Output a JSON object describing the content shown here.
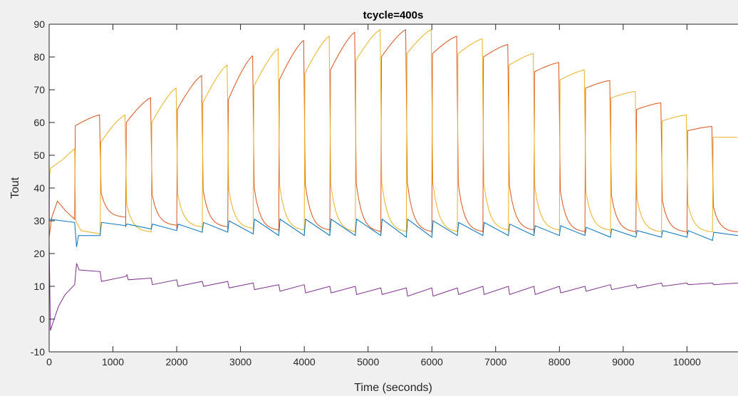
{
  "chart_data": {
    "type": "line",
    "title": "tcycle=400s",
    "xlabel": "Time (seconds)",
    "ylabel": "Tout",
    "xlim": [
      0,
      10800
    ],
    "ylim": [
      -10,
      90
    ],
    "xticks": [
      0,
      1000,
      2000,
      3000,
      4000,
      5000,
      6000,
      7000,
      8000,
      9000,
      10000
    ],
    "yticks": [
      -10,
      0,
      10,
      20,
      30,
      40,
      50,
      60,
      70,
      80,
      90
    ],
    "grid": false,
    "cycle_period": 400,
    "series": [
      {
        "color": "#d95319",
        "description": "square-wave bed temperature (rises during odd half-cycles)",
        "start": [
          0,
          25.0
        ],
        "first_peak": [
          130,
          36.0
        ],
        "cycles": [
          {
            "t": 400,
            "low": 30.5,
            "high": 59.0,
            "peak": 62.3,
            "high_until": 800
          },
          {
            "t": 1200,
            "low": 28.0,
            "high": 60.0,
            "peak": 67.5,
            "high_until": 1600
          },
          {
            "t": 2000,
            "low": 27.5,
            "high": 64.0,
            "peak": 74.3,
            "high_until": 2400
          },
          {
            "t": 2800,
            "low": 26.5,
            "high": 67.0,
            "peak": 80.3,
            "high_until": 3200
          },
          {
            "t": 3600,
            "low": 26.5,
            "high": 73.0,
            "peak": 85.0,
            "high_until": 4000
          },
          {
            "t": 4400,
            "low": 26.0,
            "high": 76.0,
            "peak": 87.5,
            "high_until": 4800
          },
          {
            "t": 5200,
            "low": 26.0,
            "high": 80.0,
            "peak": 88.3,
            "high_until": 5600
          },
          {
            "t": 6000,
            "low": 26.0,
            "high": 81.0,
            "peak": 86.3,
            "high_until": 6400
          },
          {
            "t": 6800,
            "low": 26.5,
            "high": 80.0,
            "peak": 83.8,
            "high_until": 7200
          },
          {
            "t": 7600,
            "low": 26.0,
            "high": 75.5,
            "peak": 78.3,
            "high_until": 8000
          },
          {
            "t": 8400,
            "low": 26.0,
            "high": 70.5,
            "peak": 72.8,
            "high_until": 8800
          },
          {
            "t": 9200,
            "low": 26.0,
            "high": 64.0,
            "peak": 66.0,
            "high_until": 9600
          },
          {
            "t": 10000,
            "low": 26.0,
            "high": 57.5,
            "peak": 58.8,
            "high_until": 10400
          }
        ],
        "end": [
          10800,
          27.0
        ]
      },
      {
        "color": "#edb120",
        "description": "square-wave bed temperature (rises during even half-cycles)",
        "start": [
          0,
          44.0
        ],
        "first_high_until": 400,
        "first_peak": [
          400,
          52.0
        ],
        "cycles": [
          {
            "t": 800,
            "low": 26.0,
            "high": 54.0,
            "peak": 62.3,
            "high_until": 1200
          },
          {
            "t": 1600,
            "low": 27.5,
            "high": 60.0,
            "peak": 70.5,
            "high_until": 2000
          },
          {
            "t": 2400,
            "low": 27.0,
            "high": 66.0,
            "peak": 77.5,
            "high_until": 2800
          },
          {
            "t": 3200,
            "low": 26.5,
            "high": 71.0,
            "peak": 82.5,
            "high_until": 3600
          },
          {
            "t": 4000,
            "low": 26.0,
            "high": 75.0,
            "peak": 86.3,
            "high_until": 4400
          },
          {
            "t": 4800,
            "low": 26.0,
            "high": 79.0,
            "peak": 88.3,
            "high_until": 5200
          },
          {
            "t": 5600,
            "low": 26.0,
            "high": 81.0,
            "peak": 88.3,
            "high_until": 6000
          },
          {
            "t": 6400,
            "low": 26.5,
            "high": 81.0,
            "peak": 85.5,
            "high_until": 6800
          },
          {
            "t": 7200,
            "low": 26.5,
            "high": 77.5,
            "peak": 81.0,
            "high_until": 7600
          },
          {
            "t": 8000,
            "low": 26.5,
            "high": 73.0,
            "peak": 76.0,
            "high_until": 8400
          },
          {
            "t": 8800,
            "low": 26.0,
            "high": 67.5,
            "peak": 69.5,
            "high_until": 9200
          },
          {
            "t": 9600,
            "low": 26.0,
            "high": 60.5,
            "peak": 62.3,
            "high_until": 10000
          },
          {
            "t": 10400,
            "low": 27.5,
            "high": 55.5,
            "peak": 55.5,
            "high_until": 10800
          }
        ]
      },
      {
        "color": "#0072bd",
        "description": "outlet temperature with sawtooth per half-cycle",
        "points": [
          [
            0,
            30.5
          ],
          [
            400,
            29.5
          ],
          [
            430,
            22.0
          ],
          [
            460,
            25.5
          ],
          [
            800,
            25.5
          ],
          [
            820,
            29.5
          ],
          [
            1200,
            28.5
          ],
          [
            1220,
            29.0
          ],
          [
            1600,
            27.5
          ],
          [
            1620,
            29.0
          ],
          [
            2000,
            27.0
          ],
          [
            2020,
            29.0
          ],
          [
            2400,
            26.5
          ],
          [
            2420,
            29.5
          ],
          [
            2800,
            26.5
          ],
          [
            2820,
            30.0
          ],
          [
            3200,
            26.0
          ],
          [
            3220,
            30.5
          ],
          [
            3600,
            25.5
          ],
          [
            3620,
            30.5
          ],
          [
            4000,
            25.5
          ],
          [
            4020,
            30.5
          ],
          [
            4400,
            25.5
          ],
          [
            4420,
            30.5
          ],
          [
            4800,
            25.5
          ],
          [
            4820,
            30.5
          ],
          [
            5200,
            25.5
          ],
          [
            5220,
            30.5
          ],
          [
            5600,
            25.0
          ],
          [
            5620,
            30.5
          ],
          [
            6000,
            25.0
          ],
          [
            6020,
            30.0
          ],
          [
            6400,
            25.5
          ],
          [
            6420,
            29.5
          ],
          [
            6800,
            25.5
          ],
          [
            6820,
            29.5
          ],
          [
            7200,
            25.5
          ],
          [
            7220,
            29.0
          ],
          [
            7600,
            25.5
          ],
          [
            7620,
            28.5
          ],
          [
            8000,
            25.5
          ],
          [
            8020,
            28.5
          ],
          [
            8400,
            25.5
          ],
          [
            8420,
            28.0
          ],
          [
            8800,
            25.0
          ],
          [
            8820,
            27.5
          ],
          [
            9200,
            25.0
          ],
          [
            9220,
            27.0
          ],
          [
            9600,
            25.0
          ],
          [
            9620,
            27.0
          ],
          [
            10000,
            25.0
          ],
          [
            10020,
            27.0
          ],
          [
            10400,
            24.0
          ],
          [
            10420,
            26.5
          ],
          [
            10800,
            25.5
          ]
        ]
      },
      {
        "color": "#7e2f8e",
        "description": "sawtooth temperature trace",
        "points": [
          [
            0,
            23.0
          ],
          [
            20,
            -3.5
          ],
          [
            60,
            -1.0
          ],
          [
            150,
            4.0
          ],
          [
            250,
            7.5
          ],
          [
            400,
            10.5
          ],
          [
            430,
            17.0
          ],
          [
            470,
            15.0
          ],
          [
            800,
            14.5
          ],
          [
            820,
            11.5
          ],
          [
            1200,
            13.0
          ],
          [
            1220,
            13.5
          ],
          [
            1240,
            12.0
          ],
          [
            1600,
            12.5
          ],
          [
            1620,
            10.5
          ],
          [
            2000,
            12.0
          ],
          [
            2020,
            10.0
          ],
          [
            2400,
            11.5
          ],
          [
            2420,
            10.0
          ],
          [
            2800,
            11.5
          ],
          [
            2820,
            9.5
          ],
          [
            3200,
            11.0
          ],
          [
            3220,
            9.0
          ],
          [
            3600,
            10.5
          ],
          [
            3620,
            8.5
          ],
          [
            4000,
            10.5
          ],
          [
            4020,
            8.0
          ],
          [
            4400,
            10.0
          ],
          [
            4420,
            8.0
          ],
          [
            4800,
            10.0
          ],
          [
            4820,
            7.5
          ],
          [
            5200,
            9.5
          ],
          [
            5220,
            7.5
          ],
          [
            5600,
            9.5
          ],
          [
            5620,
            7.0
          ],
          [
            6000,
            9.5
          ],
          [
            6020,
            7.0
          ],
          [
            6400,
            9.5
          ],
          [
            6420,
            7.5
          ],
          [
            6800,
            10.0
          ],
          [
            6820,
            7.5
          ],
          [
            7200,
            10.0
          ],
          [
            7220,
            7.5
          ],
          [
            7600,
            10.0
          ],
          [
            7620,
            7.5
          ],
          [
            8000,
            10.0
          ],
          [
            8020,
            8.0
          ],
          [
            8400,
            10.0
          ],
          [
            8420,
            8.5
          ],
          [
            8800,
            10.5
          ],
          [
            8820,
            9.0
          ],
          [
            9200,
            10.5
          ],
          [
            9220,
            9.5
          ],
          [
            9600,
            11.0
          ],
          [
            9620,
            10.0
          ],
          [
            10000,
            11.0
          ],
          [
            10020,
            10.5
          ],
          [
            10400,
            11.0
          ],
          [
            10420,
            10.5
          ],
          [
            10800,
            11.0
          ]
        ]
      }
    ]
  }
}
